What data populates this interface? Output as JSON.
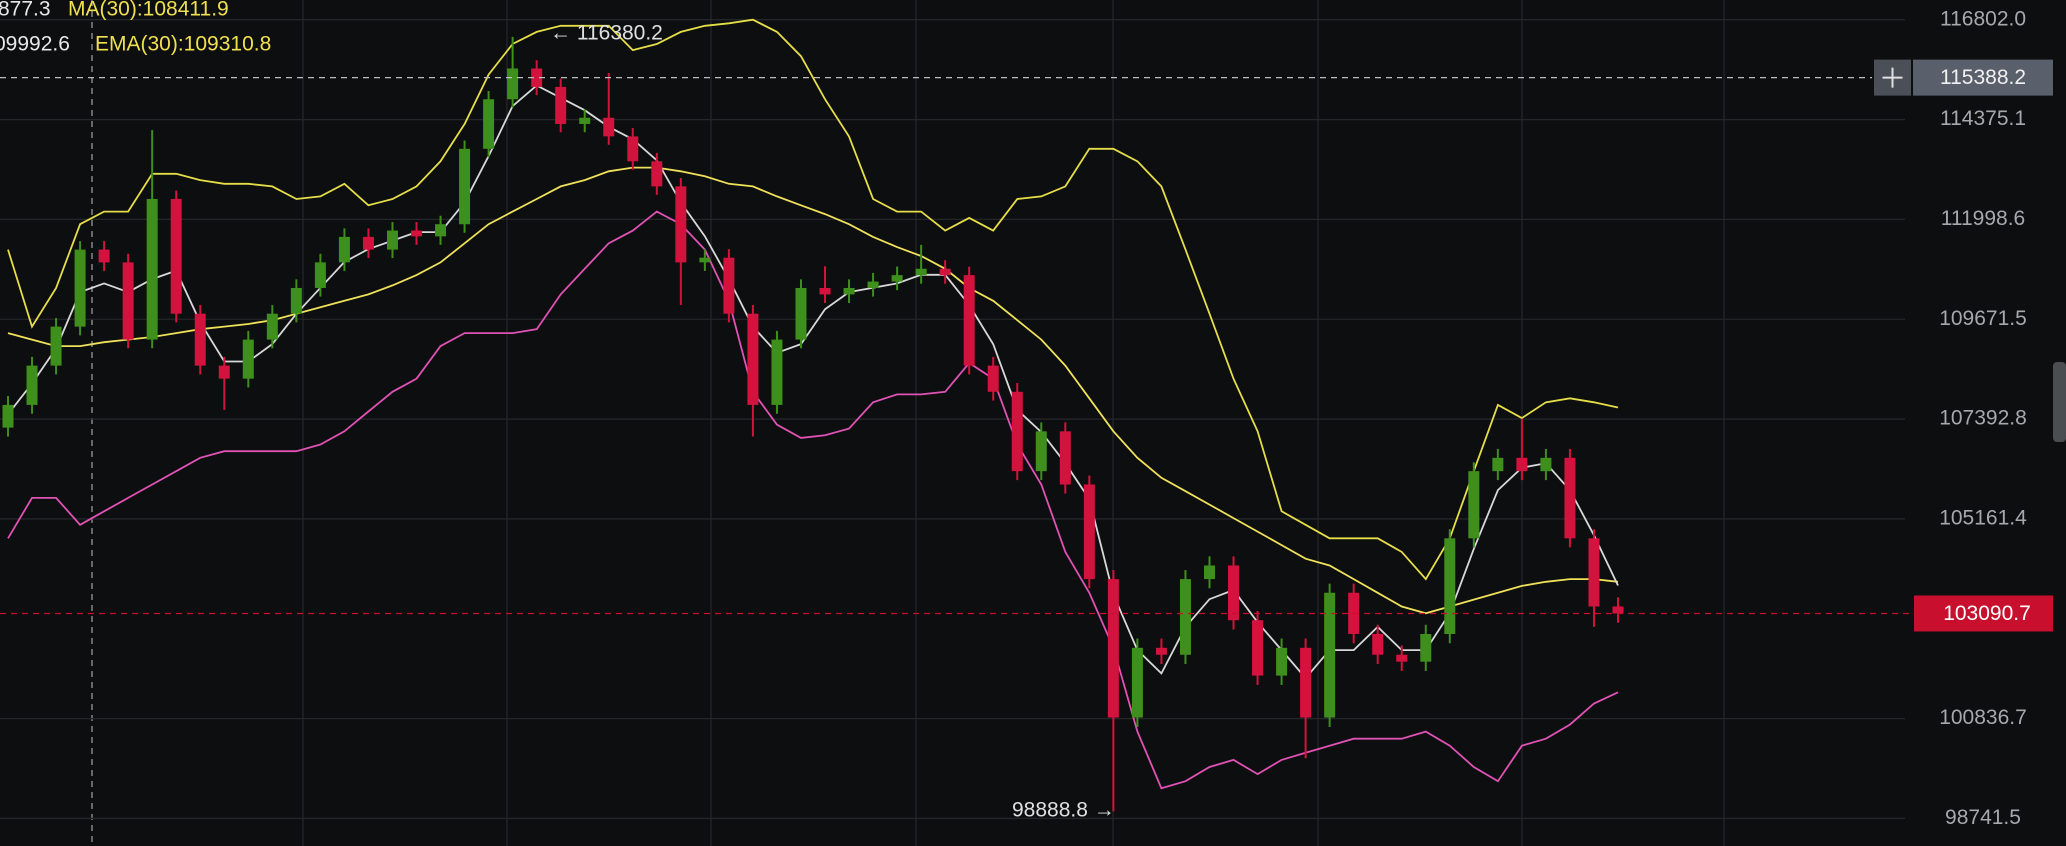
{
  "chart_data": {
    "type": "candlestick",
    "log_scale": true,
    "grid": true,
    "ylim": [
      98171,
      117287
    ],
    "yticks": [
      {
        "value": 116802.0,
        "label": "116802.0"
      },
      114375.1,
      111998.6,
      109671.5,
      107392.8,
      105161.4,
      100836.7,
      98741.5
    ],
    "up_color": "#3e8f1c",
    "down_color": "#d4123e",
    "open": [
      107200,
      107713,
      108607,
      109501,
      111289,
      110991,
      109203,
      112481,
      109799,
      108607,
      108309,
      109203,
      109799,
      110395,
      110991,
      111587,
      111289,
      111736,
      111600,
      111885,
      113673,
      114865,
      115610,
      115163,
      114269,
      114418,
      113971,
      113375,
      112779,
      110991,
      111100,
      109799,
      107713,
      109203,
      110395,
      110246,
      110395,
      110544,
      110693,
      110842,
      110693,
      108607,
      108011,
      106223,
      107117,
      105925,
      103839,
      100859,
      102349,
      102200,
      103839,
      104137,
      102945,
      101753,
      102349,
      100859,
      103541,
      102647,
      102200,
      102051,
      102647,
      104733,
      106223,
      106521,
      106223,
      106521,
      104733,
      103243
    ],
    "high": [
      107913,
      108807,
      109701,
      111489,
      111489,
      111191,
      114120,
      112681,
      109999,
      108807,
      109403,
      109999,
      110595,
      111191,
      111787,
      111787,
      111936,
      111936,
      112085,
      113873,
      115065,
      116380.2,
      115810,
      115363,
      114618,
      115500,
      114171,
      113575,
      112979,
      111300,
      111300,
      109999,
      109403,
      110595,
      110900,
      110595,
      110744,
      110893,
      111400,
      111042,
      110893,
      108807,
      108211,
      107317,
      107317,
      106125,
      104039,
      102549,
      102549,
      104039,
      104337,
      104337,
      103145,
      102549,
      102549,
      103741,
      103741,
      102847,
      102400,
      102847,
      104933,
      106423,
      106721,
      107400,
      106721,
      106721,
      104933,
      103443
    ],
    "low": [
      107000,
      107513,
      108407,
      109301,
      110791,
      109003,
      109003,
      109599,
      108407,
      107600,
      108109,
      109003,
      109599,
      110195,
      110791,
      111089,
      111089,
      111400,
      111400,
      111685,
      113473,
      114665,
      114963,
      114069,
      114069,
      113771,
      113175,
      112579,
      110000,
      110791,
      109599,
      107000,
      107513,
      109003,
      110046,
      110046,
      110195,
      110344,
      110493,
      110493,
      108407,
      107811,
      106023,
      106023,
      105725,
      103639,
      98888.8,
      100659,
      102000,
      102000,
      103639,
      102745,
      101553,
      101553,
      100000,
      100659,
      102447,
      102000,
      101851,
      101851,
      102447,
      104533,
      106023,
      106023,
      106023,
      104533,
      102800,
      102890
    ],
    "close": [
      107713,
      108607,
      109501,
      111289,
      110991,
      109203,
      112481,
      109799,
      108607,
      108309,
      109203,
      109799,
      110395,
      110991,
      111587,
      111289,
      111736,
      111600,
      111885,
      113673,
      114865,
      115610,
      115163,
      114269,
      114418,
      113971,
      113375,
      112779,
      110991,
      111100,
      109799,
      107713,
      109203,
      110395,
      110246,
      110395,
      110544,
      110693,
      110842,
      110693,
      108607,
      108011,
      106223,
      107117,
      105925,
      103839,
      100859,
      102349,
      102200,
      103839,
      104137,
      102945,
      101753,
      102349,
      100859,
      103541,
      102647,
      102200,
      102051,
      102647,
      104733,
      106223,
      106521,
      106223,
      106521,
      104733,
      103243,
      103090.7
    ],
    "overlays": [
      {
        "color": "#e6de48",
        "values": [
          111289,
          109501,
          110395,
          111885,
          112183,
          112183,
          113077,
          113077,
          112928,
          112839,
          112839,
          112779,
          112481,
          112541,
          112839,
          112332,
          112481,
          112779,
          113375,
          114269,
          115461,
          116206,
          116504,
          116653,
          116653,
          116653,
          116057,
          116206,
          116504,
          116653,
          116713,
          116802,
          116504,
          115908,
          114865,
          113971,
          112481,
          112183,
          112183,
          111736,
          112034,
          111736,
          112481,
          112541,
          112779,
          113673,
          113673,
          113375,
          112779,
          111289,
          109799,
          108309,
          107117,
          105329,
          105031,
          104733,
          104733,
          104733,
          104435,
          103839,
          104733,
          106223,
          107713,
          107415,
          107773,
          107862,
          107773,
          107654
        ]
      },
      {
        "color": "#e052b4",
        "values": [
          104733,
          105627,
          105627,
          105031,
          105329,
          105627,
          105925,
          106223,
          106521,
          106670,
          106670,
          106670,
          106670,
          106819,
          107117,
          107564,
          108011,
          108309,
          109054,
          109352,
          109352,
          109352,
          109441,
          110246,
          110842,
          111438,
          111736,
          112183,
          111885,
          111289,
          110097,
          108011,
          107266,
          106968,
          107028,
          107177,
          107773,
          107951,
          107951,
          108011,
          108667,
          108309,
          106819,
          105925,
          104435,
          103541,
          102349,
          100561,
          99369,
          99518,
          99815,
          99965,
          99667,
          99965,
          100114,
          100263,
          100412,
          100412,
          100412,
          100561,
          100263,
          99815,
          99518,
          100263,
          100412,
          100710,
          101157,
          101396
        ]
      },
      {
        "color": "#efe25a",
        "values": [
          109352,
          109203,
          109054,
          109054,
          109143,
          109203,
          109263,
          109352,
          109441,
          109501,
          109561,
          109650,
          109799,
          109948,
          110097,
          110246,
          110455,
          110693,
          110991,
          111438,
          111885,
          112183,
          112481,
          112779,
          112928,
          113137,
          113226,
          113226,
          113137,
          113017,
          112839,
          112779,
          112541,
          112332,
          112124,
          111885,
          111587,
          111349,
          111140,
          110842,
          110395,
          110097,
          109650,
          109203,
          108607,
          107862,
          107117,
          106521,
          106074,
          105776,
          105478,
          105180,
          104882,
          104584,
          104286,
          104137,
          103839,
          103541,
          103243,
          103094,
          103243,
          103392,
          103541,
          103690,
          103780,
          103839,
          103839,
          103780
        ]
      },
      {
        "color": "#d8d8d8",
        "values": [
          107500,
          108200,
          109000,
          110300,
          110500,
          110300,
          110600,
          110800,
          109600,
          108700,
          108700,
          109100,
          109800,
          110400,
          111000,
          111300,
          111500,
          111700,
          111700,
          112400,
          113500,
          114700,
          115200,
          114900,
          114600,
          114200,
          113900,
          113400,
          112400,
          111600,
          110600,
          109500,
          108900,
          109100,
          109900,
          110300,
          110400,
          110500,
          110700,
          110700,
          110000,
          109100,
          107600,
          107100,
          106400,
          105600,
          103500,
          102300,
          101800,
          102800,
          103400,
          103600,
          102900,
          102300,
          101700,
          102300,
          102300,
          102800,
          102300,
          102300,
          103100,
          104500,
          105800,
          106300,
          106400,
          105800,
          104800,
          103700
        ]
      }
    ],
    "legend": [
      {
        "text": "877.3",
        "color": "#e8e8e8"
      },
      {
        "text": "MA(30):108411.9",
        "color": "#f0e050"
      },
      {
        "text": "09992.6",
        "color": "#e8e8e8"
      },
      {
        "text": "EMA(30):109310.8",
        "color": "#f0e050"
      }
    ],
    "max_label": "← 116380.2",
    "min_label": "98888.8 →",
    "crosshair_price": 115388.2,
    "last_price": 103090.7,
    "last_price_color": "#c8102e"
  }
}
